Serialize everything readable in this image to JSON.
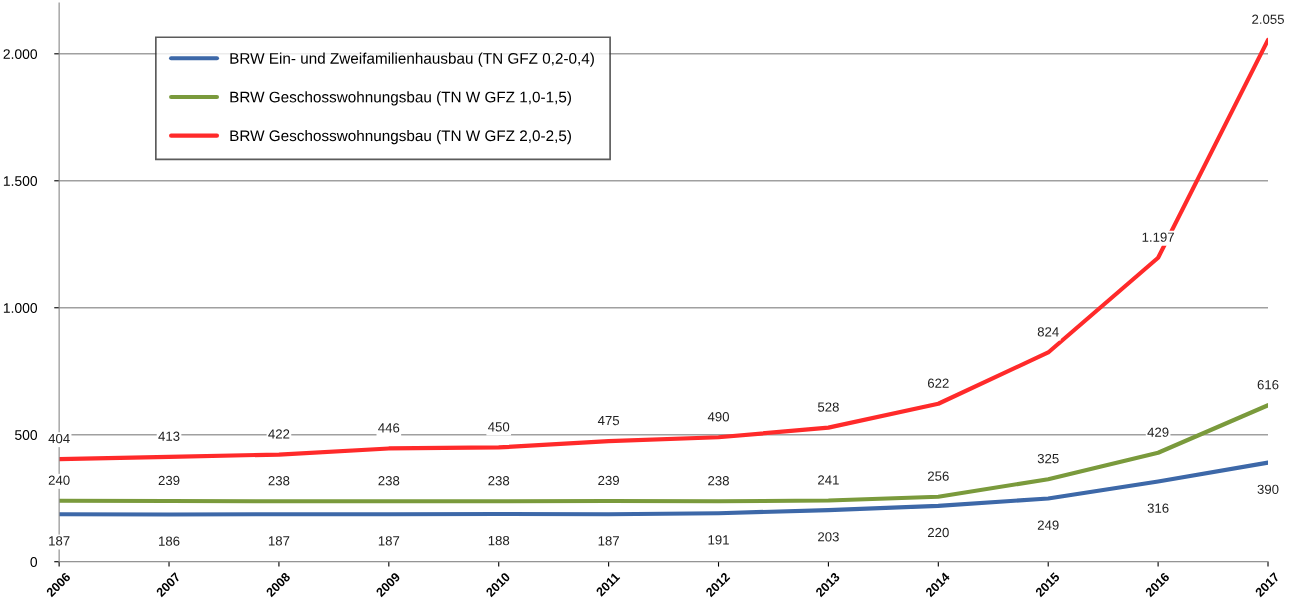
{
  "chart_data": {
    "type": "line",
    "categories": [
      "2006",
      "2007",
      "2008",
      "2009",
      "2010",
      "2011",
      "2012",
      "2013",
      "2014",
      "2015",
      "2016",
      "2017"
    ],
    "series": [
      {
        "name": "BRW Ein- und Zweifamilienhausbau (TN GFZ 0,2-0,4)",
        "color": "#3d68a8",
        "values": [
          187,
          186,
          187,
          187,
          188,
          187,
          191,
          203,
          220,
          249,
          316,
          390
        ],
        "value_labels": [
          "187",
          "186",
          "187",
          "187",
          "188",
          "187",
          "191",
          "203",
          "220",
          "249",
          "316",
          "390"
        ]
      },
      {
        "name": "BRW Geschosswohnungsbau (TN W GFZ 1,0-1,5)",
        "color": "#7a9a3c",
        "values": [
          240,
          239,
          238,
          238,
          238,
          239,
          238,
          241,
          256,
          325,
          429,
          616
        ],
        "value_labels": [
          "240",
          "239",
          "238",
          "238",
          "238",
          "239",
          "238",
          "241",
          "256",
          "325",
          "429",
          "616"
        ]
      },
      {
        "name": "BRW Geschosswohnungsbau (TN W GFZ 2,0-2,5)",
        "color": "#ff2a2a",
        "values": [
          404,
          413,
          422,
          446,
          450,
          475,
          490,
          528,
          622,
          824,
          1197,
          2055
        ],
        "value_labels": [
          "404",
          "413",
          "422",
          "446",
          "450",
          "475",
          "490",
          "528",
          "622",
          "824",
          "1.197",
          "2.055"
        ]
      }
    ],
    "ylim": [
      0,
      2200
    ],
    "yticks": [
      0,
      500,
      {
        "value": 1000,
        "label": "1.000"
      },
      {
        "value": 1500,
        "label": "1.500"
      },
      {
        "value": 2000,
        "label": "2.000"
      }
    ],
    "grid": "y",
    "legend": "top left",
    "marker": "none",
    "line_style": "solid"
  }
}
